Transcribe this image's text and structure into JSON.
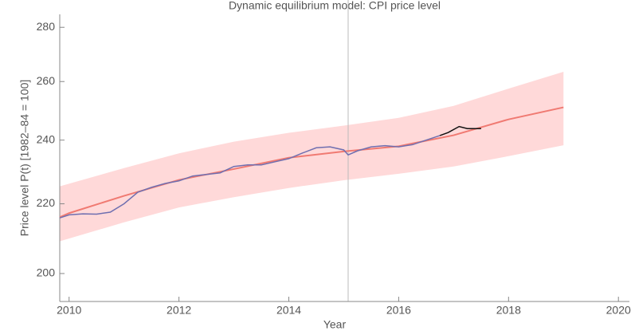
{
  "chart_data": {
    "type": "line",
    "title": "Dynamic equilibrium model: CPI price level",
    "ylabel": "Price level P(t) [1982–84 = 100]",
    "xlabel": "Year",
    "log_y": true,
    "xlim": [
      2009.83,
      2020.2
    ],
    "ylim": [
      192.5,
      285
    ],
    "xticks": [
      2010,
      2012,
      2014,
      2016,
      2018,
      2020
    ],
    "yticks": [
      200,
      220,
      240,
      260,
      280
    ],
    "vline": 2015.08,
    "vline_color": "#bbbbbb",
    "band": {
      "color": "#ffd9d9",
      "x": [
        2009.83,
        2011,
        2012,
        2013,
        2014,
        2015,
        2016,
        2017,
        2018,
        2019
      ],
      "upper": [
        225.3,
        231,
        235.7,
        239.5,
        242.4,
        244.8,
        247.4,
        251.5,
        257.5,
        263.5
      ],
      "lower": [
        209,
        214.5,
        218.9,
        222,
        224.8,
        227.2,
        229.2,
        231.5,
        234.8,
        238.3
      ]
    },
    "model": {
      "color": "#f07a72",
      "x": [
        2009.83,
        2010,
        2011,
        2012,
        2013,
        2014,
        2015,
        2016,
        2017,
        2018,
        2019
      ],
      "values": [
        216,
        217.2,
        222.4,
        227.3,
        230.7,
        234.3,
        236.3,
        238,
        241.6,
        246.9,
        251
      ]
    },
    "series": [
      {
        "color": "#6f6fb0",
        "x": [
          2009.83,
          2010,
          2010.25,
          2010.5,
          2010.75,
          2011,
          2011.25,
          2011.5,
          2011.75,
          2012,
          2012.25,
          2012.5,
          2012.75,
          2013,
          2013.25,
          2013.5,
          2013.75,
          2014,
          2014.25,
          2014.5,
          2014.75,
          2015,
          2015.08,
          2015.25,
          2015.5,
          2015.75,
          2016,
          2016.25,
          2016.5,
          2016.75
        ],
        "values": [
          215.8,
          216.7,
          217,
          216.9,
          217.5,
          220,
          223.5,
          225,
          226.2,
          227,
          228.5,
          229,
          229.5,
          231.5,
          232,
          232,
          233,
          234,
          235.8,
          237.5,
          237.8,
          236.8,
          235.2,
          236.5,
          237.8,
          238.2,
          237.8,
          238.5,
          240,
          241.5
        ]
      },
      {
        "color": "#111111",
        "x": [
          2016.75,
          2016.9,
          2017.1,
          2017.25,
          2017.5
        ],
        "values": [
          241.5,
          242.5,
          244.5,
          243.8,
          243.8
        ]
      }
    ]
  }
}
